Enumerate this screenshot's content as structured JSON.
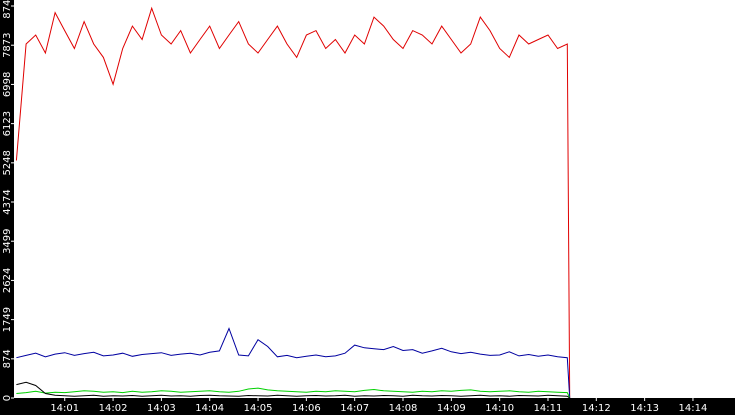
{
  "chart_data": {
    "type": "line",
    "x": [
      0,
      0.2,
      0.4,
      0.6,
      0.8,
      1,
      1.2,
      1.4,
      1.6,
      1.8,
      2,
      2.2,
      2.4,
      2.6,
      2.8,
      3,
      3.2,
      3.4,
      3.6,
      3.8,
      4,
      4.2,
      4.4,
      4.6,
      4.8,
      5,
      5.2,
      5.4,
      5.6,
      5.8,
      6,
      6.2,
      6.4,
      6.6,
      6.8,
      7,
      7.2,
      7.4,
      7.6,
      7.8,
      8,
      8.2,
      8.4,
      8.6,
      8.8,
      9,
      9.2,
      9.4,
      9.6,
      9.8,
      10,
      10.2,
      10.4,
      10.6,
      10.8,
      11,
      11.2,
      11.4,
      11.45
    ],
    "series": [
      {
        "color": "#e00000",
        "values": [
          5300,
          7900,
          8100,
          7700,
          8600,
          8200,
          7800,
          8400,
          7900,
          7600,
          7000,
          7800,
          8300,
          8000,
          8700,
          8100,
          7900,
          8200,
          7700,
          8000,
          8300,
          7800,
          8100,
          8400,
          7900,
          7700,
          8000,
          8300,
          7900,
          7600,
          8100,
          8200,
          7800,
          8000,
          7700,
          8100,
          7900,
          8500,
          8300,
          8000,
          7800,
          8200,
          8100,
          7900,
          8300,
          8000,
          7700,
          7900,
          8500,
          8200,
          7800,
          7600,
          8100,
          7900,
          8000,
          8100,
          7800,
          7900,
          0
        ]
      },
      {
        "color": "#0000a0",
        "values": [
          900,
          950,
          1000,
          920,
          980,
          1010,
          950,
          990,
          1020,
          940,
          960,
          1000,
          930,
          970,
          990,
          1010,
          950,
          980,
          1000,
          960,
          1020,
          1050,
          1550,
          960,
          940,
          1300,
          1150,
          920,
          950,
          900,
          930,
          960,
          920,
          940,
          1000,
          1180,
          1120,
          1100,
          1080,
          1150,
          1060,
          1080,
          1000,
          1050,
          1110,
          1030,
          990,
          1020,
          980,
          950,
          960,
          1030,
          940,
          970,
          930,
          960,
          920,
          900,
          0
        ]
      },
      {
        "color": "#00d000",
        "values": [
          100,
          120,
          150,
          110,
          130,
          120,
          140,
          160,
          150,
          130,
          140,
          120,
          150,
          130,
          140,
          160,
          150,
          130,
          140,
          150,
          160,
          140,
          130,
          150,
          200,
          220,
          180,
          160,
          150,
          140,
          130,
          150,
          140,
          160,
          150,
          140,
          170,
          190,
          160,
          150,
          140,
          130,
          150,
          140,
          160,
          150,
          170,
          180,
          150,
          140,
          150,
          160,
          140,
          130,
          150,
          140,
          130,
          120,
          0
        ]
      },
      {
        "color": "#000000",
        "values": [
          300,
          350,
          280,
          100,
          60,
          50,
          40,
          50,
          60,
          40,
          50,
          45,
          55,
          40,
          50,
          60,
          45,
          50,
          40,
          55,
          60,
          50,
          45,
          40,
          55,
          50,
          45,
          60,
          50,
          40,
          50,
          55,
          45,
          50,
          60,
          40,
          50,
          45,
          55,
          50,
          40,
          60,
          50,
          45,
          55,
          50,
          40,
          50,
          60,
          45,
          50,
          40,
          55,
          50,
          45,
          60,
          50,
          40,
          0
        ]
      }
    ],
    "xlim": [
      -0.05,
      14.87
    ],
    "xticks": [
      {
        "value": 1,
        "label": "14:01"
      },
      {
        "value": 2,
        "label": "14:02"
      },
      {
        "value": 3,
        "label": "14:03"
      },
      {
        "value": 4,
        "label": "14:04"
      },
      {
        "value": 5,
        "label": "14:05"
      },
      {
        "value": 6,
        "label": "14:06"
      },
      {
        "value": 7,
        "label": "14:07"
      },
      {
        "value": 8,
        "label": "14:08"
      },
      {
        "value": 9,
        "label": "14:09"
      },
      {
        "value": 10,
        "label": "14:10"
      },
      {
        "value": 11,
        "label": "14:11"
      },
      {
        "value": 12,
        "label": "14:12"
      },
      {
        "value": 13,
        "label": "14:13"
      },
      {
        "value": 14,
        "label": "14:14"
      }
    ],
    "ylim": [
      0,
      8748
    ],
    "yticks": [
      0,
      874,
      1749,
      2624,
      3499,
      4374,
      5248,
      6123,
      6998,
      7873,
      8748
    ]
  }
}
